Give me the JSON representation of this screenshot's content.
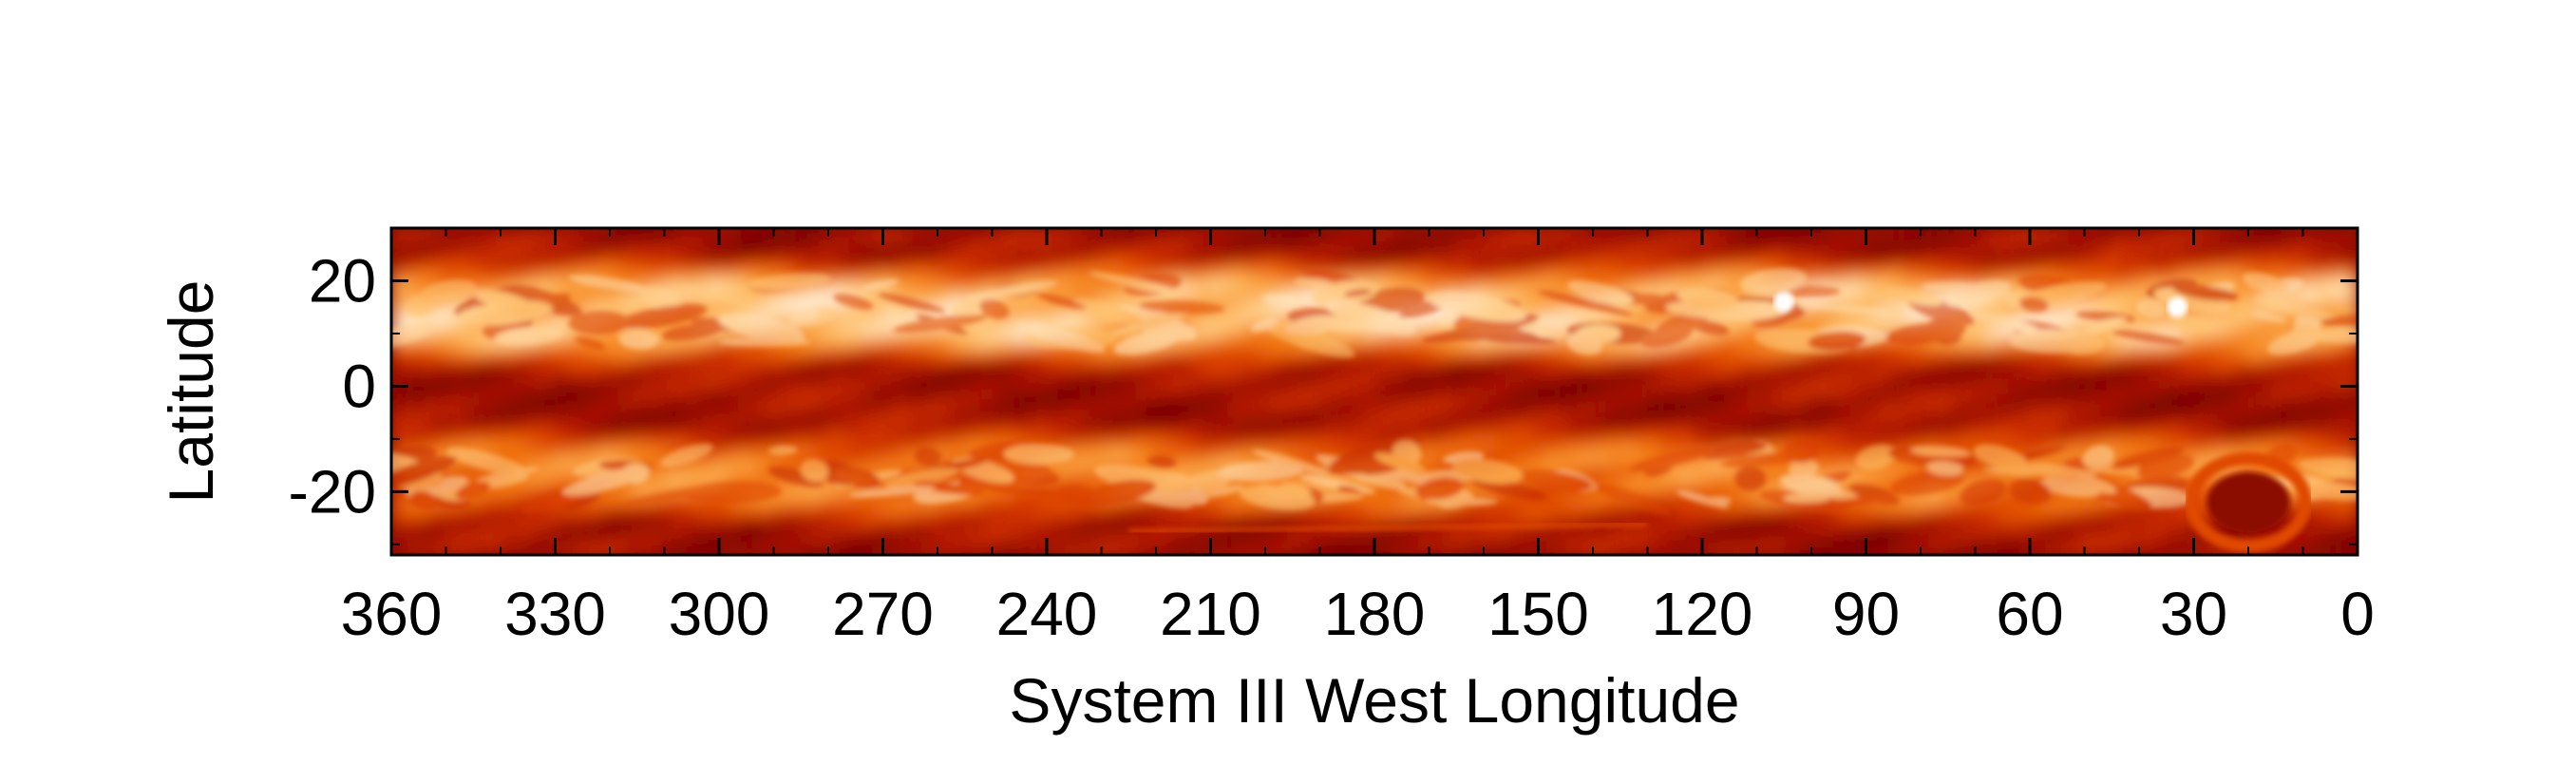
{
  "chart_data": {
    "type": "heatmap",
    "title": "",
    "xlabel": "System III West Longitude",
    "ylabel": "Latitude",
    "xlim": [
      360,
      0
    ],
    "ylim": [
      -32,
      30
    ],
    "x_ticks": [
      360,
      330,
      300,
      270,
      240,
      210,
      180,
      150,
      120,
      90,
      60,
      30,
      0
    ],
    "y_ticks": [
      20,
      0,
      -20
    ],
    "x_tick_labels": [
      "360",
      "330",
      "300",
      "270",
      "240",
      "210",
      "180",
      "150",
      "120",
      "90",
      "60",
      "30",
      "0"
    ],
    "y_tick_labels": [
      "20",
      "0",
      "-20"
    ],
    "colormap": [
      "#6e0000",
      "#a81000",
      "#d83a00",
      "#f47a10",
      "#ffc26a",
      "#ffffff"
    ],
    "grid": false,
    "legend": "none",
    "features": [
      {
        "name": "bright northern band",
        "lat_range": [
          8,
          20
        ],
        "intensity": 0.8
      },
      {
        "name": "dark equatorial zone",
        "lat_range": [
          -10,
          6
        ],
        "intensity": 0.15
      },
      {
        "name": "bright southern band",
        "lat_range": [
          -22,
          -12
        ],
        "intensity": 0.6
      },
      {
        "name": "dark oval",
        "lon": 20,
        "lat": -22,
        "intensity": 0.1
      },
      {
        "name": "bright spot",
        "lon": 105,
        "lat": 16,
        "intensity": 1.0
      },
      {
        "name": "bright spot",
        "lon": 33,
        "lat": 15,
        "intensity": 1.0
      }
    ]
  }
}
